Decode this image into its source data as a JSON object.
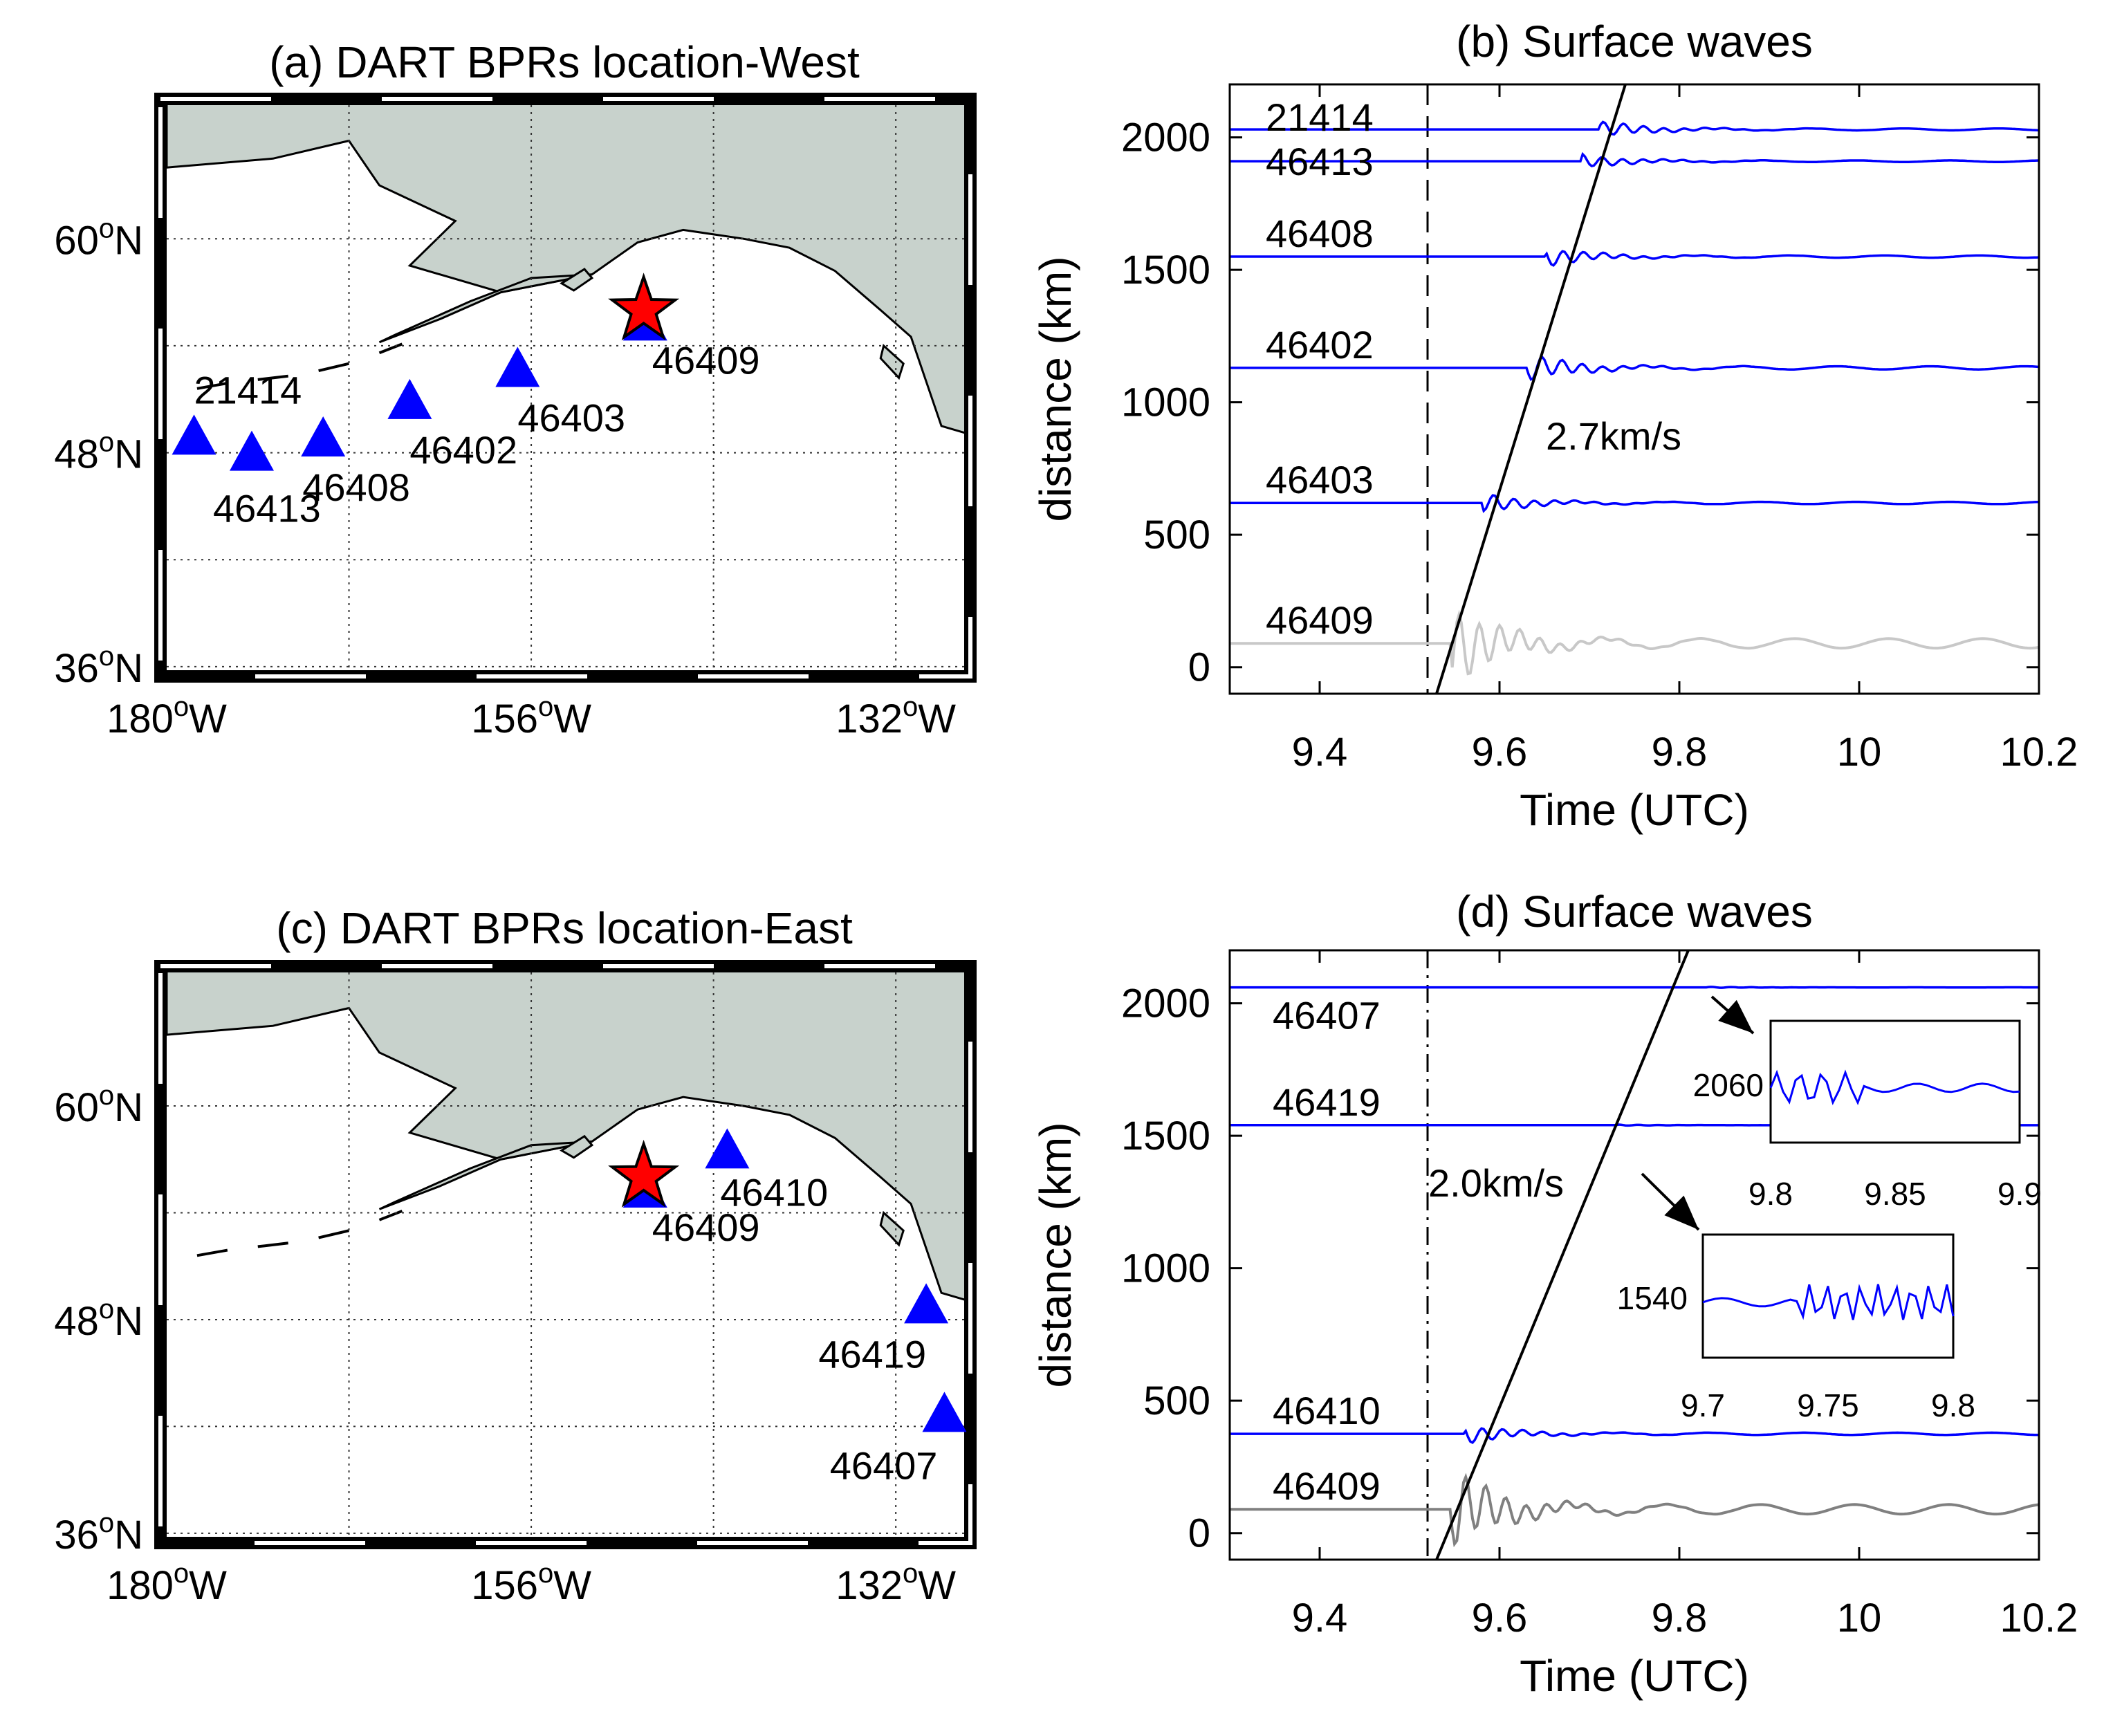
{
  "panels": {
    "a": {
      "title": "(a) DART BPRs location-West"
    },
    "b": {
      "title": "(b) Surface waves"
    },
    "c": {
      "title": "(c) DART BPRs location-East"
    },
    "d": {
      "title": "(d) Surface waves"
    }
  },
  "map": {
    "lat_ticks": [
      {
        "deg": "60",
        "sup": "o",
        "hem": "N"
      },
      {
        "deg": "48",
        "sup": "o",
        "hem": "N"
      },
      {
        "deg": "36",
        "sup": "o",
        "hem": "N"
      }
    ],
    "lon_ticks": [
      {
        "deg": "180",
        "sup": "o",
        "hem": "W"
      },
      {
        "deg": "156",
        "sup": "o",
        "hem": "W"
      },
      {
        "deg": "132",
        "sup": "o",
        "hem": "W"
      }
    ],
    "land_color": "#c8d2cc",
    "station_color": "#0000ff",
    "epicenter_color": "#ff0000",
    "epicenter": {
      "lon": -148.6,
      "lat": 56.0
    },
    "west_stations": [
      {
        "id": "21414",
        "lon": -178.2,
        "lat": 48.9
      },
      {
        "id": "46413",
        "lon": -174.4,
        "lat": 48.0
      },
      {
        "id": "46408",
        "lon": -169.7,
        "lat": 48.8
      },
      {
        "id": "46402",
        "lon": -164.0,
        "lat": 50.9
      },
      {
        "id": "46403",
        "lon": -156.9,
        "lat": 52.7
      },
      {
        "id": "46409",
        "lon": -148.5,
        "lat": 55.3
      }
    ],
    "east_stations": [
      {
        "id": "46410",
        "lon": -143.1,
        "lat": 57.5
      },
      {
        "id": "46409",
        "lon": -148.5,
        "lat": 55.3
      },
      {
        "id": "46419",
        "lon": -130.0,
        "lat": 48.8
      },
      {
        "id": "46407",
        "lon": -128.8,
        "lat": 42.7
      }
    ]
  },
  "chart_data": [
    {
      "type": "line",
      "title": "(b) Surface waves",
      "xlabel": "Time (UTC)",
      "ylabel": "distance (km)",
      "xlim": [
        9.3,
        10.2
      ],
      "ylim": [
        -100,
        2200
      ],
      "xticks": [
        "9.4",
        "9.6",
        "9.8",
        "10",
        "10.2"
      ],
      "yticks": [
        "0",
        "500",
        "1000",
        "1500",
        "2000"
      ],
      "origin_time": 9.52,
      "speed_label": "2.7km/s",
      "traces": [
        {
          "name": "21414",
          "distance": 2030,
          "arrival": 9.71,
          "amp": 30,
          "color": "#0000ff"
        },
        {
          "name": "46413",
          "distance": 1910,
          "arrival": 9.69,
          "amp": 25,
          "color": "#0000ff"
        },
        {
          "name": "46408",
          "distance": 1550,
          "arrival": 9.65,
          "amp": 35,
          "color": "#0000ff"
        },
        {
          "name": "46402",
          "distance": 1130,
          "arrival": 9.63,
          "amp": 50,
          "color": "#0000ff"
        },
        {
          "name": "46403",
          "distance": 620,
          "arrival": 9.58,
          "amp": 35,
          "color": "#0000ff"
        },
        {
          "name": "46409",
          "distance": 90,
          "arrival": 9.545,
          "amp": 150,
          "color": "#c8c8c8"
        }
      ],
      "line": {
        "x": [
          9.53,
          9.74
        ],
        "y": [
          -100,
          2200
        ]
      }
    },
    {
      "type": "line",
      "title": "(d) Surface waves",
      "xlabel": "Time (UTC)",
      "ylabel": "distance (km)",
      "xlim": [
        9.3,
        10.2
      ],
      "ylim": [
        -100,
        2200
      ],
      "xticks": [
        "9.4",
        "9.6",
        "9.8",
        "10",
        "10.2"
      ],
      "yticks": [
        "0",
        "500",
        "1000",
        "1500",
        "2000"
      ],
      "origin_time": 9.52,
      "speed_label": "2.0km/s",
      "traces": [
        {
          "name": "46407",
          "distance": 2060,
          "arrival": 9.83,
          "amp": 2,
          "color": "#0000ff"
        },
        {
          "name": "46419",
          "distance": 1540,
          "arrival": 9.73,
          "amp": 2,
          "color": "#0000ff"
        },
        {
          "name": "46410",
          "distance": 375,
          "arrival": 9.56,
          "amp": 35,
          "color": "#0000ff"
        },
        {
          "name": "46409",
          "distance": 90,
          "arrival": 9.545,
          "amp": 150,
          "color": "#808080"
        }
      ],
      "line": {
        "x": [
          9.53,
          9.81
        ],
        "y": [
          -100,
          2200
        ]
      },
      "insets": [
        {
          "station": "46407",
          "ylabel": "2060",
          "xlim": [
            9.8,
            9.9
          ],
          "xticks": [
            "9.8",
            "9.85",
            "9.9"
          ]
        },
        {
          "station": "46419",
          "ylabel": "1540",
          "xlim": [
            9.7,
            9.8
          ],
          "xticks": [
            "9.7",
            "9.75",
            "9.8"
          ]
        }
      ]
    }
  ]
}
